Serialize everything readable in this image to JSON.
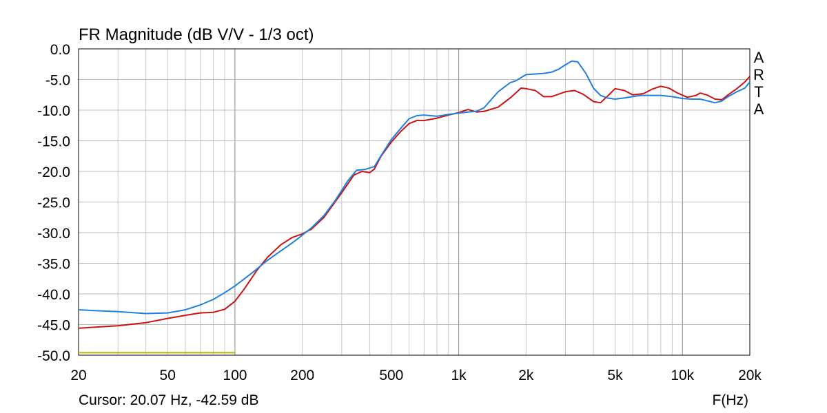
{
  "chart_data": {
    "type": "line",
    "title": "FR Magnitude (dB V/V - 1/3 oct)",
    "xlabel": "F(Hz)",
    "ylabel": "",
    "x_scale": "log",
    "xlim": [
      20,
      20000
    ],
    "ylim": [
      -50,
      0
    ],
    "grid": true,
    "x_ticks": [
      20,
      50,
      100,
      200,
      500,
      1000,
      2000,
      5000,
      10000,
      20000
    ],
    "x_tick_labels": [
      "20",
      "50",
      "100",
      "200",
      "500",
      "1k",
      "2k",
      "5k",
      "10k",
      "20k"
    ],
    "y_ticks": [
      0,
      -5,
      -10,
      -15,
      -20,
      -25,
      -30,
      -35,
      -40,
      -45,
      -50
    ],
    "y_tick_labels": [
      "0.0",
      "-5.0",
      "-10.0",
      "-15.0",
      "-20.0",
      "-25.0",
      "-30.0",
      "-35.0",
      "-40.0",
      "-45.0",
      "-50.0"
    ],
    "series": [
      {
        "color": "#cc1111",
        "points": [
          [
            20,
            -45.6
          ],
          [
            30,
            -45.2
          ],
          [
            40,
            -44.7
          ],
          [
            50,
            -44.0
          ],
          [
            60,
            -43.5
          ],
          [
            70,
            -43.1
          ],
          [
            80,
            -43.0
          ],
          [
            90,
            -42.5
          ],
          [
            100,
            -41.2
          ],
          [
            110,
            -39.2
          ],
          [
            125,
            -36.2
          ],
          [
            140,
            -34.0
          ],
          [
            160,
            -32.0
          ],
          [
            180,
            -30.8
          ],
          [
            200,
            -30.2
          ],
          [
            220,
            -29.4
          ],
          [
            250,
            -27.5
          ],
          [
            280,
            -25.0
          ],
          [
            300,
            -23.5
          ],
          [
            340,
            -20.6
          ],
          [
            370,
            -20.0
          ],
          [
            400,
            -20.2
          ],
          [
            420,
            -19.6
          ],
          [
            450,
            -17.5
          ],
          [
            500,
            -15.2
          ],
          [
            550,
            -13.5
          ],
          [
            600,
            -12.2
          ],
          [
            650,
            -11.7
          ],
          [
            700,
            -11.7
          ],
          [
            800,
            -11.3
          ],
          [
            900,
            -10.8
          ],
          [
            1000,
            -10.4
          ],
          [
            1100,
            -9.9
          ],
          [
            1200,
            -10.3
          ],
          [
            1300,
            -10.2
          ],
          [
            1500,
            -9.5
          ],
          [
            1700,
            -8.0
          ],
          [
            1900,
            -6.4
          ],
          [
            2000,
            -6.5
          ],
          [
            2200,
            -6.8
          ],
          [
            2400,
            -7.8
          ],
          [
            2600,
            -7.8
          ],
          [
            3000,
            -7.0
          ],
          [
            3300,
            -6.8
          ],
          [
            3600,
            -7.4
          ],
          [
            4000,
            -8.6
          ],
          [
            4300,
            -8.8
          ],
          [
            4600,
            -7.8
          ],
          [
            5000,
            -6.5
          ],
          [
            5500,
            -6.8
          ],
          [
            6000,
            -7.5
          ],
          [
            6700,
            -7.3
          ],
          [
            7300,
            -6.6
          ],
          [
            8000,
            -6.1
          ],
          [
            8700,
            -6.4
          ],
          [
            9500,
            -7.2
          ],
          [
            10500,
            -7.9
          ],
          [
            11500,
            -7.6
          ],
          [
            12000,
            -7.2
          ],
          [
            13000,
            -7.6
          ],
          [
            14000,
            -8.2
          ],
          [
            15000,
            -8.3
          ],
          [
            16000,
            -7.5
          ],
          [
            17500,
            -6.5
          ],
          [
            19000,
            -5.4
          ],
          [
            20000,
            -4.5
          ]
        ]
      },
      {
        "color": "#1f7fdf",
        "points": [
          [
            20,
            -42.6
          ],
          [
            30,
            -42.9
          ],
          [
            40,
            -43.2
          ],
          [
            50,
            -43.1
          ],
          [
            60,
            -42.6
          ],
          [
            70,
            -41.8
          ],
          [
            80,
            -40.9
          ],
          [
            90,
            -39.8
          ],
          [
            100,
            -38.7
          ],
          [
            120,
            -36.5
          ],
          [
            140,
            -34.5
          ],
          [
            160,
            -33.0
          ],
          [
            180,
            -31.7
          ],
          [
            200,
            -30.4
          ],
          [
            220,
            -29.2
          ],
          [
            250,
            -27.2
          ],
          [
            280,
            -24.8
          ],
          [
            320,
            -21.5
          ],
          [
            350,
            -19.8
          ],
          [
            380,
            -19.7
          ],
          [
            420,
            -19.2
          ],
          [
            450,
            -17.4
          ],
          [
            500,
            -14.8
          ],
          [
            550,
            -13.0
          ],
          [
            600,
            -11.4
          ],
          [
            650,
            -10.9
          ],
          [
            700,
            -10.8
          ],
          [
            800,
            -11.0
          ],
          [
            900,
            -10.7
          ],
          [
            1000,
            -10.5
          ],
          [
            1100,
            -10.3
          ],
          [
            1200,
            -10.2
          ],
          [
            1300,
            -9.6
          ],
          [
            1500,
            -7.0
          ],
          [
            1700,
            -5.5
          ],
          [
            1800,
            -5.2
          ],
          [
            2000,
            -4.2
          ],
          [
            2200,
            -4.1
          ],
          [
            2400,
            -4.0
          ],
          [
            2600,
            -3.8
          ],
          [
            2800,
            -3.3
          ],
          [
            3000,
            -2.6
          ],
          [
            3200,
            -2.0
          ],
          [
            3400,
            -2.1
          ],
          [
            3700,
            -4.0
          ],
          [
            4000,
            -6.4
          ],
          [
            4300,
            -7.6
          ],
          [
            4600,
            -8.0
          ],
          [
            5000,
            -8.2
          ],
          [
            5500,
            -8.0
          ],
          [
            6000,
            -7.8
          ],
          [
            6500,
            -7.6
          ],
          [
            7000,
            -7.6
          ],
          [
            8000,
            -7.6
          ],
          [
            9000,
            -7.8
          ],
          [
            10000,
            -8.1
          ],
          [
            11000,
            -8.2
          ],
          [
            12000,
            -8.2
          ],
          [
            13000,
            -8.5
          ],
          [
            14000,
            -8.8
          ],
          [
            15000,
            -8.5
          ],
          [
            16000,
            -7.8
          ],
          [
            17500,
            -7.0
          ],
          [
            19000,
            -6.4
          ],
          [
            20000,
            -5.4
          ]
        ]
      },
      {
        "color": "#b8b800",
        "points": [
          [
            20,
            -49.6
          ],
          [
            100,
            -49.6
          ]
        ]
      }
    ]
  },
  "cursor_readout": "Cursor: 20.07 Hz, -42.59 dB",
  "brand_letters": [
    "A",
    "R",
    "T",
    "A"
  ]
}
